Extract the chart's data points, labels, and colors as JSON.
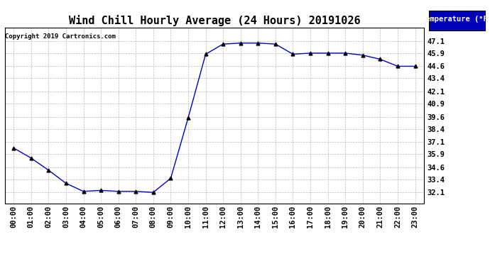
{
  "title": "Wind Chill Hourly Average (24 Hours) 20191026",
  "copyright": "Copyright 2019 Cartronics.com",
  "legend_label": "Temperature (°F)",
  "x_labels": [
    "00:00",
    "01:00",
    "02:00",
    "03:00",
    "04:00",
    "05:00",
    "06:00",
    "07:00",
    "08:00",
    "09:00",
    "10:00",
    "11:00",
    "12:00",
    "13:00",
    "14:00",
    "15:00",
    "16:00",
    "17:00",
    "18:00",
    "19:00",
    "20:00",
    "21:00",
    "22:00",
    "23:00"
  ],
  "y_values": [
    36.5,
    35.5,
    34.3,
    33.0,
    32.2,
    32.3,
    32.2,
    32.2,
    32.1,
    33.5,
    39.5,
    45.8,
    46.8,
    46.9,
    46.9,
    46.8,
    45.8,
    45.9,
    45.9,
    45.9,
    45.7,
    45.3,
    44.6,
    44.6
  ],
  "ylim_min": 31.0,
  "ylim_max": 48.4,
  "yticks": [
    32.1,
    33.4,
    34.6,
    35.9,
    37.1,
    38.4,
    39.6,
    40.9,
    42.1,
    43.4,
    44.6,
    45.9,
    47.1
  ],
  "line_color": "#0000cc",
  "marker_color": "#000000",
  "bg_color": "#ffffff",
  "plot_bg_color": "#ffffff",
  "grid_color": "#bbbbbb",
  "title_fontsize": 11,
  "tick_fontsize": 7.5,
  "copyright_fontsize": 6.5,
  "legend_bg": "#0000bb",
  "legend_text_color": "#ffffff",
  "legend_fontsize": 7.5
}
